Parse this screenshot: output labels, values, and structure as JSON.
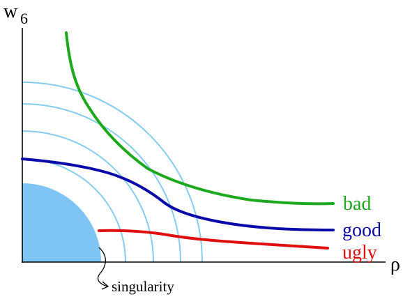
{
  "axes": {
    "y_label": "w",
    "y_label_subscript": "6",
    "x_label": "ρ"
  },
  "curves": [
    {
      "key": "bad",
      "label": "bad",
      "color": "#1ea81e"
    },
    {
      "key": "good",
      "label": "good",
      "color": "#0a0aa8"
    },
    {
      "key": "ugly",
      "label": "ugly",
      "color": "#e01010"
    }
  ],
  "singularity": {
    "label": "singularity",
    "region_color": "#7ec4f5"
  },
  "contour_color": "#87cbf0"
}
